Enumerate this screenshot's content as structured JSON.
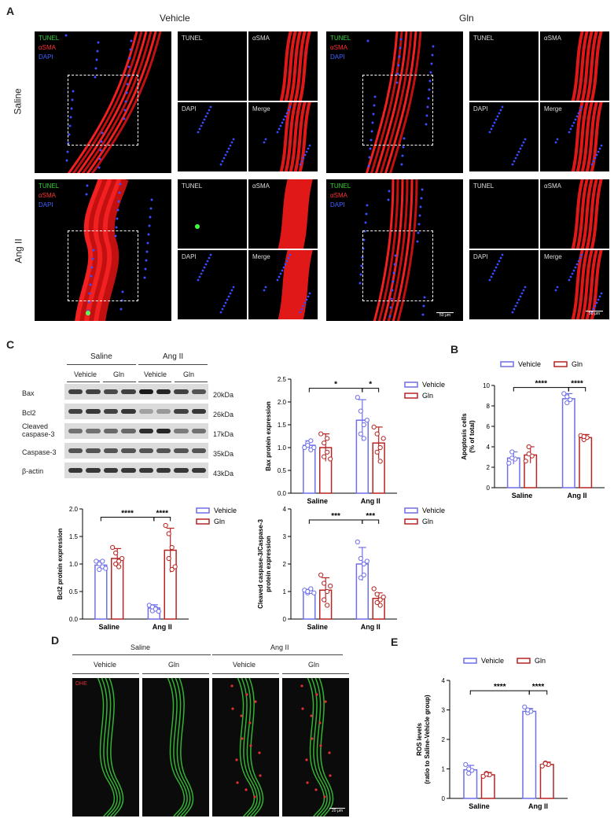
{
  "panelA": {
    "label": "A",
    "col_headers": [
      "Vehicle",
      "Gln"
    ],
    "row_headers": [
      "Saline",
      "Ang II"
    ],
    "stain_labels": [
      "TUNEL",
      "αSMA",
      "DAPI"
    ],
    "tile_labels": [
      "TUNEL",
      "αSMA",
      "DAPI",
      "Merge"
    ],
    "scale_bar": "50 μm"
  },
  "panelC": {
    "label": "C",
    "group_headers": [
      "Saline",
      "Ang II"
    ],
    "sub_headers": [
      "Vehicle",
      "Gln",
      "Vehicle",
      "Gln"
    ],
    "proteins": [
      "Bax",
      "Bcl2",
      "Cleaved\ncaspase-3",
      "Caspase-3",
      "β-actin"
    ],
    "kda": [
      "20kDa",
      "26kDa",
      "17kDa",
      "35kDa",
      "43kDa"
    ]
  },
  "panelB": {
    "label": "B"
  },
  "panelD": {
    "label": "D",
    "group_headers": [
      "Saline",
      "Ang II"
    ],
    "sub_headers": [
      "Vehicle",
      "Gln",
      "Vehicle",
      "Gln"
    ],
    "stain": "DHE",
    "scale_bar": "20 μm"
  },
  "panelE": {
    "label": "E"
  },
  "colors": {
    "vehicle": "#6f6fe8",
    "gln": "#b82424"
  },
  "chart_data": [
    {
      "id": "bax",
      "type": "bar",
      "ylabel": "Bax protein expression",
      "ylim": [
        0,
        2.5
      ],
      "yticks": [
        0,
        0.5,
        1.0,
        1.5,
        2.0,
        2.5
      ],
      "categories": [
        "Saline",
        "Ang II"
      ],
      "legend": [
        "Vehicle",
        "Gln"
      ],
      "series": [
        {
          "name": "Vehicle",
          "values": [
            1.05,
            1.6
          ],
          "err": [
            0.1,
            0.45
          ],
          "points": [
            [
              1.0,
              1.1,
              0.95,
              1.05,
              1.15,
              1.0
            ],
            [
              2.1,
              1.8,
              1.5,
              1.3,
              1.2,
              1.6
            ]
          ]
        },
        {
          "name": "Gln",
          "values": [
            1.0,
            1.1
          ],
          "err": [
            0.3,
            0.35
          ],
          "points": [
            [
              1.3,
              1.1,
              0.9,
              0.8,
              1.2,
              0.75
            ],
            [
              1.45,
              1.3,
              1.0,
              0.9,
              0.7,
              1.2
            ]
          ]
        }
      ],
      "sig": [
        {
          "label": "*",
          "from": [
            0,
            0
          ],
          "to": [
            1,
            0
          ],
          "y": 2.3
        },
        {
          "label": "*",
          "from": [
            1,
            0
          ],
          "to": [
            1,
            1
          ],
          "y": 2.3
        }
      ]
    },
    {
      "id": "apoptosis",
      "type": "bar",
      "ylabel": "Apoptosis cells\n(% of total)",
      "ylim": [
        0,
        10
      ],
      "yticks": [
        0,
        2,
        4,
        6,
        8,
        10
      ],
      "categories": [
        "Saline",
        "Ang II"
      ],
      "legend": [
        "Vehicle",
        "Gln"
      ],
      "series": [
        {
          "name": "Vehicle",
          "values": [
            2.9,
            8.7
          ],
          "err": [
            0.6,
            0.5
          ],
          "points": [
            [
              2.4,
              3.5,
              2.8,
              2.9
            ],
            [
              9.2,
              8.3,
              8.6,
              8.9
            ]
          ]
        },
        {
          "name": "Gln",
          "values": [
            3.2,
            4.9
          ],
          "err": [
            0.8,
            0.3
          ],
          "points": [
            [
              2.6,
              4.0,
              3.1,
              3.3
            ],
            [
              5.1,
              4.7,
              4.9,
              5.0
            ]
          ]
        }
      ],
      "sig": [
        {
          "label": "****",
          "from": [
            0,
            0
          ],
          "to": [
            1,
            0
          ],
          "y": 9.8
        },
        {
          "label": "****",
          "from": [
            1,
            0
          ],
          "to": [
            1,
            1
          ],
          "y": 9.8
        }
      ]
    },
    {
      "id": "bcl2",
      "type": "bar",
      "ylabel": "Bcl2 protein expression",
      "ylim": [
        0,
        2.0
      ],
      "yticks": [
        0,
        0.5,
        1.0,
        1.5,
        2.0
      ],
      "categories": [
        "Saline",
        "Ang II"
      ],
      "legend": [
        "Vehicle",
        "Gln"
      ],
      "series": [
        {
          "name": "Vehicle",
          "values": [
            0.98,
            0.2
          ],
          "err": [
            0.08,
            0.06
          ],
          "points": [
            [
              1.05,
              0.9,
              0.95,
              1.0,
              1.05,
              0.92
            ],
            [
              0.25,
              0.15,
              0.2,
              0.22,
              0.18,
              0.14
            ]
          ]
        },
        {
          "name": "Gln",
          "values": [
            1.1,
            1.25
          ],
          "err": [
            0.18,
            0.4
          ],
          "points": [
            [
              1.3,
              1.2,
              1.05,
              1.0,
              0.95,
              1.1
            ],
            [
              1.7,
              1.55,
              1.3,
              1.1,
              0.9,
              0.95
            ]
          ]
        }
      ],
      "sig": [
        {
          "label": "****",
          "from": [
            0,
            0
          ],
          "to": [
            1,
            0
          ],
          "y": 1.85
        },
        {
          "label": "****",
          "from": [
            1,
            0
          ],
          "to": [
            1,
            1
          ],
          "y": 1.85
        }
      ]
    },
    {
      "id": "cleaved",
      "type": "bar",
      "ylabel": "Cleaved caspase-3/Caspase-3\nprotein expression",
      "ylim": [
        0,
        4
      ],
      "yticks": [
        0,
        1,
        2,
        3,
        4
      ],
      "categories": [
        "Saline",
        "Ang II"
      ],
      "legend": [
        "Vehicle",
        "Gln"
      ],
      "series": [
        {
          "name": "Vehicle",
          "values": [
            1.0,
            2.0
          ],
          "err": [
            0.08,
            0.6
          ],
          "points": [
            [
              1.05,
              0.95,
              1.0,
              1.0,
              1.1,
              0.95
            ],
            [
              2.8,
              2.2,
              2.0,
              1.5,
              1.6,
              2.1
            ]
          ]
        },
        {
          "name": "Gln",
          "values": [
            1.05,
            0.75
          ],
          "err": [
            0.45,
            0.2
          ],
          "points": [
            [
              1.6,
              1.3,
              1.0,
              0.7,
              0.5,
              1.2
            ],
            [
              1.1,
              0.9,
              0.7,
              0.6,
              0.5,
              0.8
            ]
          ]
        }
      ],
      "sig": [
        {
          "label": "***",
          "from": [
            0,
            0
          ],
          "to": [
            1,
            0
          ],
          "y": 3.6
        },
        {
          "label": "***",
          "from": [
            1,
            0
          ],
          "to": [
            1,
            1
          ],
          "y": 3.6
        }
      ]
    },
    {
      "id": "ros",
      "type": "bar",
      "ylabel": "ROS levels\n(ratio to Saline-Vehicle group)",
      "ylim": [
        0,
        4
      ],
      "yticks": [
        0,
        1,
        2,
        3,
        4
      ],
      "categories": [
        "Saline",
        "Ang II"
      ],
      "legend": [
        "Vehicle",
        "Gln"
      ],
      "series": [
        {
          "name": "Vehicle",
          "values": [
            0.97,
            2.95
          ],
          "err": [
            0.15,
            0.1
          ],
          "points": [
            [
              1.15,
              0.85,
              0.95,
              1.0
            ],
            [
              3.1,
              2.9,
              2.95,
              3.0
            ]
          ]
        },
        {
          "name": "Gln",
          "values": [
            0.8,
            1.15
          ],
          "err": [
            0.08,
            0.08
          ],
          "points": [
            [
              0.75,
              0.85,
              0.8,
              0.82
            ],
            [
              1.1,
              1.2,
              1.15,
              1.18
            ]
          ]
        }
      ],
      "sig": [
        {
          "label": "****",
          "from": [
            0,
            0
          ],
          "to": [
            1,
            0
          ],
          "y": 3.65
        },
        {
          "label": "****",
          "from": [
            1,
            0
          ],
          "to": [
            1,
            1
          ],
          "y": 3.65
        }
      ]
    }
  ]
}
